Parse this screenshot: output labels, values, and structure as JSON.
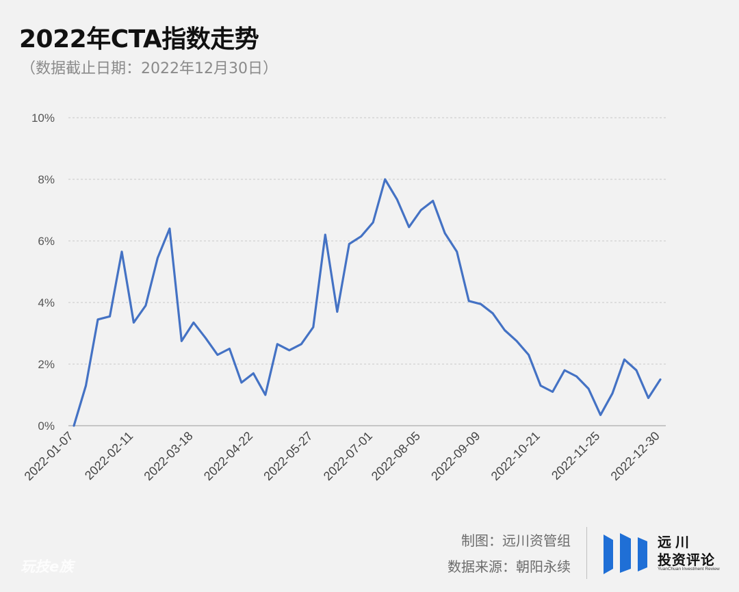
{
  "title": "2022年CTA指数走势",
  "subtitle": "（数据截止日期：2022年12月30日）",
  "credits": {
    "chart_by": "制图：远川资管组",
    "source": "数据来源：朝阳永续"
  },
  "logo": {
    "name_line1": "远川",
    "name_line2": "投资评论",
    "english": "YuanChuan Investment Review"
  },
  "watermark": "玩技e族",
  "colors": {
    "background": "#f2f2f2",
    "line": "#4472c4",
    "grid": "#c8c8c8",
    "logo_blue": "#1f6fd6"
  },
  "chart_data": {
    "type": "line",
    "title": "2022年CTA指数走势",
    "xlabel": "",
    "ylabel": "",
    "ylim": [
      0,
      10
    ],
    "y_ticks": [
      0,
      2,
      4,
      6,
      8,
      10
    ],
    "y_tick_labels": [
      "0%",
      "2%",
      "4%",
      "6%",
      "8%",
      "10%"
    ],
    "x_tick_labels": [
      "2022-01-07",
      "2022-02-11",
      "2022-03-18",
      "2022-04-22",
      "2022-05-27",
      "2022-07-01",
      "2022-08-05",
      "2022-09-09",
      "2022-10-21",
      "2022-11-25",
      "2022-12-30"
    ],
    "grid": true,
    "legend": "none",
    "series": [
      {
        "values": [
          0.0,
          1.3,
          3.45,
          3.55,
          5.65,
          3.35,
          3.9,
          5.45,
          6.4,
          2.75,
          3.35,
          2.85,
          2.3,
          2.5,
          1.4,
          1.7,
          1.0,
          2.65,
          2.45,
          2.65,
          3.2,
          6.2,
          3.7,
          5.9,
          6.15,
          6.6,
          8.0,
          7.35,
          6.45,
          7.0,
          7.3,
          6.25,
          5.65,
          4.05,
          3.95,
          3.65,
          3.1,
          2.75,
          2.3,
          1.3,
          1.1,
          1.8,
          1.6,
          1.2,
          0.35,
          1.05,
          2.15,
          1.8,
          0.9,
          1.5
        ]
      }
    ]
  }
}
